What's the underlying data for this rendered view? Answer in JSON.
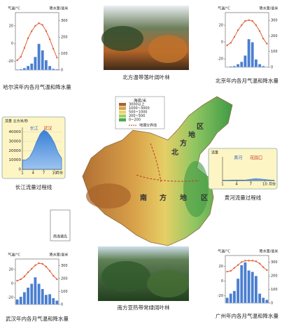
{
  "chart_data": [
    {
      "type": "combo",
      "title": "哈尔滨年内各月气温和降水量",
      "ylabel": "气温/°C",
      "y2label": "降水量/毫米",
      "x": [
        1,
        2,
        3,
        4,
        5,
        6,
        7,
        8,
        9,
        10,
        11,
        12
      ],
      "xlim": [
        0.5,
        12.5
      ],
      "ylim": [
        -30,
        35
      ],
      "yticks": [
        -20,
        0,
        20
      ],
      "y2lim": [
        0,
        350
      ],
      "y2ticks": [
        0,
        100,
        200,
        300
      ],
      "series": [
        {
          "type": "bar",
          "axis": "y2",
          "color": "#4a7fd0",
          "values": [
            4,
            6,
            12,
            25,
            40,
            80,
            160,
            120,
            60,
            25,
            8,
            5
          ]
        },
        {
          "type": "line",
          "color": "#e0603a",
          "values": [
            -19,
            -15,
            -5,
            6,
            14,
            20,
            23,
            21,
            14,
            5,
            -6,
            -16
          ]
        }
      ]
    },
    {
      "type": "combo",
      "title": "北京年内各月气温和降水量",
      "ylabel": "气温/°C",
      "y2label": "降水量/毫米",
      "x": [
        1,
        2,
        3,
        4,
        5,
        6,
        7,
        8,
        9,
        10,
        11,
        12
      ],
      "xlim": [
        0.5,
        12.5
      ],
      "ylim": [
        -30,
        35
      ],
      "yticks": [
        -20,
        0,
        20
      ],
      "y2lim": [
        0,
        350
      ],
      "y2ticks": [
        0,
        100,
        200,
        300
      ],
      "series": [
        {
          "type": "bar",
          "axis": "y2",
          "color": "#4a7fd0",
          "values": [
            3,
            5,
            8,
            20,
            35,
            75,
            180,
            160,
            50,
            20,
            8,
            3
          ]
        },
        {
          "type": "line",
          "color": "#e0603a",
          "values": [
            -4,
            -1,
            6,
            14,
            20,
            25,
            26,
            25,
            20,
            13,
            4,
            -2
          ]
        }
      ]
    },
    {
      "type": "flow",
      "title": "长江流量过程线",
      "ylabel": "流量 立方米/秒",
      "annotations": [
        "长江",
        "武汉"
      ],
      "xlabel": "月份",
      "x": [
        1,
        2,
        3,
        4,
        5,
        6,
        7,
        8,
        9,
        10,
        11,
        12
      ],
      "xlim": [
        1,
        12
      ],
      "xticks": [
        1,
        4,
        7,
        10
      ],
      "ylim": [
        0,
        45000
      ],
      "yticks": [
        0,
        10000,
        20000,
        30000,
        40000
      ],
      "color": "#3a7fd5",
      "values": [
        10000,
        10000,
        13000,
        20000,
        30000,
        38000,
        42000,
        40000,
        35000,
        28000,
        18000,
        12000
      ]
    },
    {
      "type": "flow",
      "title": "黄河流量过程线",
      "ylabel": "流量",
      "annotations": [
        "黄河",
        "花园口"
      ],
      "xlabel": "月份",
      "x": [
        1,
        2,
        3,
        4,
        5,
        6,
        7,
        8,
        9,
        10,
        11,
        12
      ],
      "xlim": [
        1,
        12
      ],
      "xticks": [
        1,
        4,
        7,
        10
      ],
      "ylim": [
        0,
        45000
      ],
      "yticks": [],
      "color": "#3a7fd5",
      "values": [
        600,
        700,
        900,
        900,
        1000,
        1200,
        2500,
        3500,
        3000,
        2000,
        1100,
        700
      ]
    },
    {
      "type": "combo",
      "title": "武汉年内各月气温和降水量",
      "ylabel": "气温/°C",
      "y2label": "降水量/毫米",
      "x": [
        1,
        2,
        3,
        4,
        5,
        6,
        7,
        8,
        9,
        10,
        11,
        12
      ],
      "xlim": [
        0.5,
        12.5
      ],
      "ylim": [
        -30,
        35
      ],
      "yticks": [
        -20,
        0,
        20
      ],
      "y2lim": [
        0,
        350
      ],
      "y2ticks": [
        0,
        100,
        200,
        300
      ],
      "series": [
        {
          "type": "bar",
          "axis": "y2",
          "color": "#4a7fd0",
          "values": [
            40,
            60,
            95,
            130,
            160,
            210,
            160,
            120,
            75,
            80,
            50,
            30
          ]
        },
        {
          "type": "line",
          "color": "#e0603a",
          "values": [
            4,
            6,
            10,
            16,
            21,
            26,
            29,
            28,
            24,
            18,
            11,
            6
          ]
        }
      ]
    },
    {
      "type": "combo",
      "title": "广州年内各月气温和降水量",
      "ylabel": "气温/°C",
      "y2label": "降水量/毫米",
      "x": [
        1,
        2,
        3,
        4,
        5,
        6,
        7,
        8,
        9,
        10,
        11,
        12
      ],
      "xlim": [
        0.5,
        12.5
      ],
      "ylim": [
        -30,
        35
      ],
      "yticks": [
        -20,
        0,
        20
      ],
      "y2lim": [
        0,
        350
      ],
      "y2ticks": [
        0,
        100,
        200,
        300
      ],
      "series": [
        {
          "type": "bar",
          "axis": "y2",
          "color": "#4a7fd0",
          "values": [
            40,
            70,
            90,
            180,
            280,
            300,
            240,
            230,
            200,
            70,
            40,
            25
          ]
        },
        {
          "type": "line",
          "color": "#e0603a",
          "values": [
            13,
            14,
            18,
            22,
            26,
            28,
            28,
            28,
            27,
            24,
            19,
            15
          ]
        }
      ]
    }
  ],
  "photos": [
    {
      "caption": "北方温带落叶阔叶林"
    },
    {
      "caption": "南方亚热带常绿阔叶林"
    }
  ],
  "map": {
    "legend_title": "海拔/米",
    "legend_items": [
      {
        "label": "3000以上",
        "color": "#a8632a"
      },
      {
        "label": "1000~3000",
        "color": "#d9a24a"
      },
      {
        "label": "500~1000",
        "color": "#ecd36a"
      },
      {
        "label": "200~500",
        "color": "#9fcf6a"
      },
      {
        "label": "0~200",
        "color": "#4ea84a"
      }
    ],
    "boundary_label": "地理分界线",
    "labels": [
      "北",
      "方",
      "地",
      "区",
      "南",
      "方",
      "地",
      "区"
    ],
    "inset_label": "南海诸岛"
  }
}
